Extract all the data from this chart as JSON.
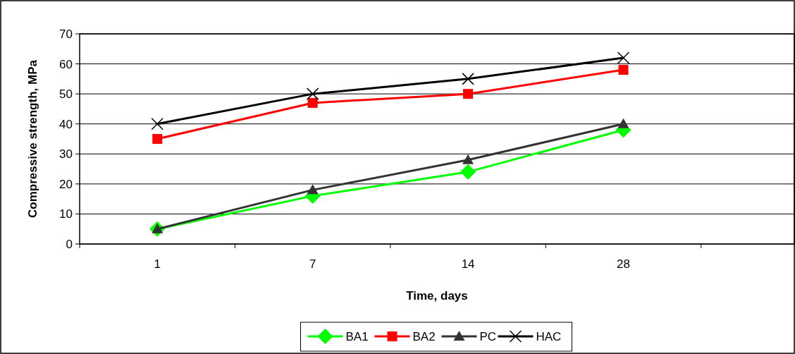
{
  "chart_data": {
    "type": "line",
    "xlabel": "Time, days",
    "ylabel": "Compressive strength, MPa",
    "categories": [
      "1",
      "7",
      "14",
      "28"
    ],
    "ylim": [
      0,
      70
    ],
    "yticks": [
      0,
      10,
      20,
      30,
      40,
      50,
      60,
      70
    ],
    "grid": "y",
    "legend": "bottom",
    "line_style": "solid",
    "series": [
      {
        "name": "BA1",
        "color": "#00ff00",
        "marker": "diamond",
        "values": [
          5,
          16,
          24,
          38
        ]
      },
      {
        "name": "BA2",
        "color": "#ff0000",
        "marker": "square",
        "values": [
          35,
          47,
          50,
          58
        ]
      },
      {
        "name": "PC",
        "color": "#333333",
        "marker": "triangle",
        "values": [
          5,
          18,
          28,
          40
        ]
      },
      {
        "name": "HAC",
        "color": "#000000",
        "marker": "cross",
        "values": [
          40,
          50,
          55,
          62
        ]
      }
    ]
  }
}
